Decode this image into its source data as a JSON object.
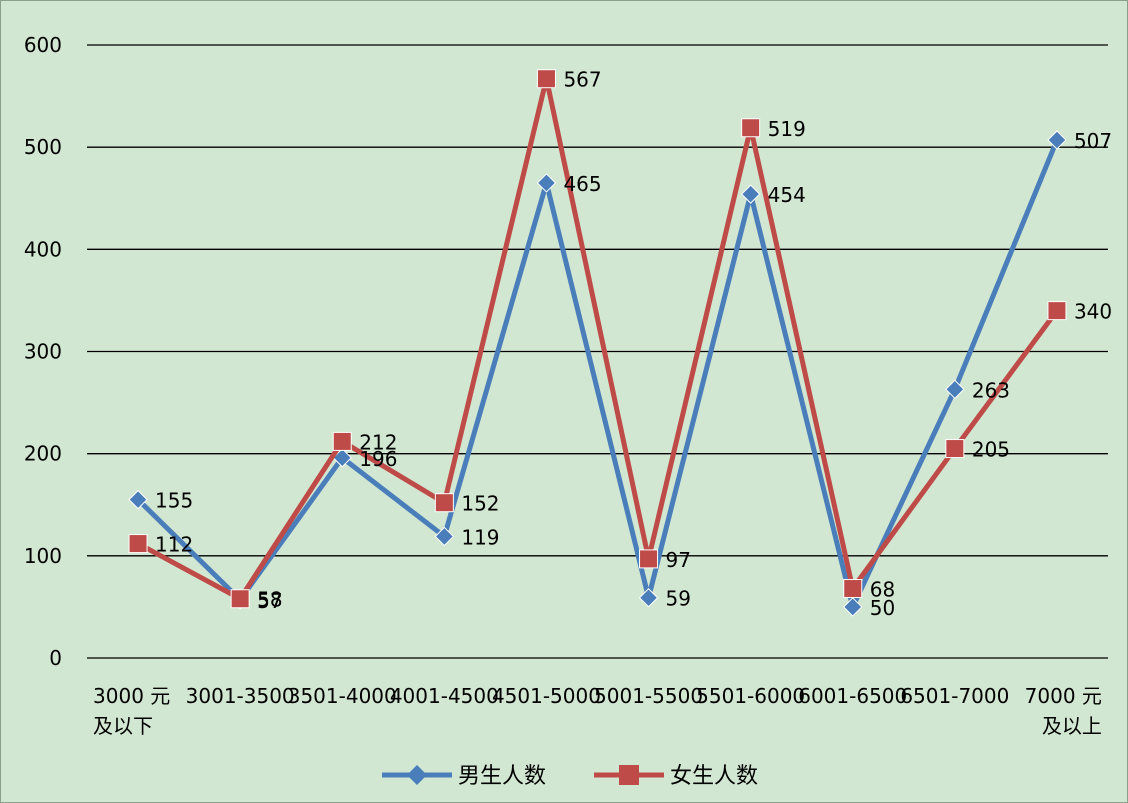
{
  "chart_data": {
    "type": "line",
    "title": "",
    "xlabel": "",
    "ylabel": "",
    "ylim": [
      0,
      600
    ],
    "yticks": [
      0,
      100,
      200,
      300,
      400,
      500,
      600
    ],
    "grid": true,
    "legend_position": "bottom",
    "categories": [
      [
        "3000 元",
        "及以下"
      ],
      [
        "3001-3500"
      ],
      [
        "3501-4000"
      ],
      [
        "4001-4500"
      ],
      [
        "4501-5000"
      ],
      [
        "5001-5500"
      ],
      [
        "5501-6000"
      ],
      [
        "6001-6500"
      ],
      [
        "6501-7000"
      ],
      [
        "7000 元",
        "及以上"
      ]
    ],
    "series": [
      {
        "name": "男生人数",
        "color": "#4a7ebb",
        "marker": "diamond",
        "values": [
          155,
          57,
          196,
          119,
          465,
          59,
          454,
          50,
          263,
          507
        ]
      },
      {
        "name": "女生人数",
        "color": "#be4b48",
        "marker": "square",
        "values": [
          112,
          58,
          212,
          152,
          567,
          97,
          519,
          68,
          205,
          340
        ]
      }
    ]
  }
}
